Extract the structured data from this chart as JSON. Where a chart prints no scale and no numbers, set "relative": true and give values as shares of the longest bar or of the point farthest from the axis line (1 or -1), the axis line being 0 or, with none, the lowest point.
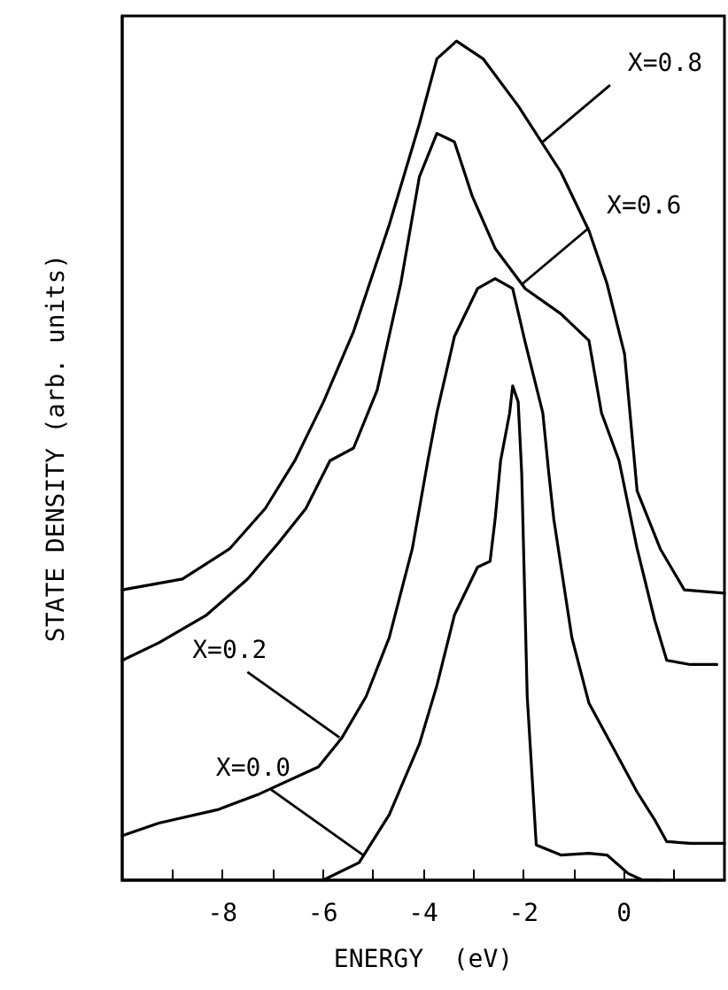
{
  "chart_data": {
    "type": "line",
    "relative": true,
    "xlabel": "ENERGY  (eV)",
    "ylabel": "STATE DENSITY (arb. units)",
    "xlim": [
      -10,
      2
    ],
    "xticks": [
      {
        "value": -9,
        "label": null
      },
      -8,
      {
        "value": -7,
        "label": null
      },
      -6,
      {
        "value": -5,
        "label": null
      },
      -4,
      {
        "value": -3,
        "label": null
      },
      -2,
      {
        "value": -1,
        "label": null
      },
      0,
      {
        "value": 1,
        "label": null
      }
    ],
    "grid": false,
    "marker": "none",
    "line_style": "solid",
    "series": [
      {
        "color": "#000000",
        "x": [
          -10,
          -8,
          -6,
          -5.28,
          -4.68,
          -4.08,
          -3.73,
          -3.38,
          -2.92,
          -2.67,
          -2.57,
          -2.46,
          -2.28,
          -2.22,
          -2.11,
          -2.04,
          -1.93,
          -1.75,
          -1.26,
          -0.7,
          -0.34,
          0.08,
          0.37,
          0.72
        ],
        "values": [
          0,
          0,
          0,
          0.021,
          0.078,
          0.162,
          0.232,
          0.316,
          0.373,
          0.38,
          0.43,
          0.5,
          0.557,
          0.589,
          0.57,
          0.485,
          0.219,
          0.042,
          0.03,
          0.032,
          0.03,
          0.008,
          0,
          0
        ]
      },
      {
        "color": "#000000",
        "x": [
          -10,
          -9.27,
          -8.1,
          -7.26,
          -6.09,
          -5.63,
          -5.14,
          -4.68,
          -4.22,
          -3.91,
          -3.73,
          -3.38,
          -2.92,
          -2.57,
          -2.22,
          -1.97,
          -1.62,
          -1.5,
          -1.4,
          -1.04,
          -0.7,
          -0.2,
          0.26,
          0.61,
          0.85,
          1.32,
          2
        ],
        "values": [
          0.053,
          0.068,
          0.084,
          0.103,
          0.135,
          0.169,
          0.219,
          0.289,
          0.395,
          0.5,
          0.557,
          0.648,
          0.705,
          0.717,
          0.705,
          0.641,
          0.557,
          0.485,
          0.43,
          0.289,
          0.211,
          0.156,
          0.105,
          0.072,
          0.046,
          0.044,
          0.044
        ]
      },
      {
        "color": "#000000",
        "x": [
          -10,
          -9.27,
          -8.32,
          -7.5,
          -6.9,
          -6.34,
          -5.86,
          -5.39,
          -4.92,
          -4.45,
          -4.08,
          -3.73,
          -3.38,
          -3.03,
          -2.57,
          -1.97,
          -1.26,
          -0.7,
          -0.45,
          -0.1,
          0.26,
          0.61,
          0.85,
          1.32,
          1.85
        ],
        "values": [
          0.262,
          0.283,
          0.316,
          0.359,
          0.401,
          0.443,
          0.5,
          0.515,
          0.584,
          0.711,
          0.838,
          0.89,
          0.88,
          0.816,
          0.753,
          0.705,
          0.675,
          0.643,
          0.557,
          0.5,
          0.395,
          0.31,
          0.262,
          0.257,
          0.257
        ]
      },
      {
        "color": "#000000",
        "x": [
          -10,
          -8.8,
          -7.86,
          -7.15,
          -6.56,
          -5.99,
          -5.39,
          -4.68,
          -4.08,
          -3.73,
          -3.34,
          -2.81,
          -2.1,
          -1.26,
          -0.7,
          -0.34,
          0.01,
          0.26,
          0.72,
          1.2,
          2
        ],
        "values": [
          0.346,
          0.359,
          0.395,
          0.443,
          0.5,
          0.57,
          0.654,
          0.781,
          0.901,
          0.979,
          1,
          0.979,
          0.922,
          0.844,
          0.774,
          0.711,
          0.627,
          0.464,
          0.395,
          0.346,
          0.342
        ]
      }
    ],
    "annotations": [
      {
        "text": "X=0.8",
        "x": -1.62,
        "y": 0.88
      },
      {
        "text": "X=0.6",
        "x": -2.04,
        "y": 0.71
      },
      {
        "text": "X=0.2",
        "x": -5.67,
        "y": 0.17
      },
      {
        "text": "X=0.0",
        "x": -5.2,
        "y": 0.03
      }
    ]
  }
}
